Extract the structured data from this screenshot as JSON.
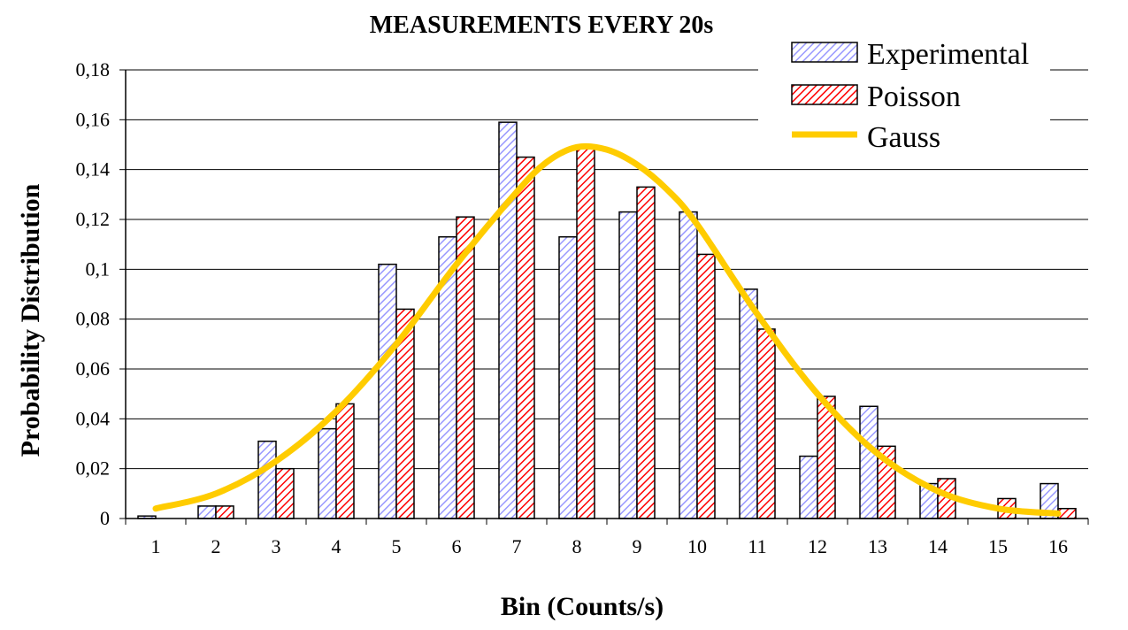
{
  "chart_data": {
    "type": "bar",
    "title": "MEASUREMENTS EVERY 20s",
    "xlabel": "Bin (Counts/s)",
    "ylabel": "Probability Distribution",
    "categories": [
      "1",
      "2",
      "3",
      "4",
      "5",
      "6",
      "7",
      "8",
      "9",
      "10",
      "11",
      "12",
      "13",
      "14",
      "15",
      "16"
    ],
    "ylim": [
      0,
      0.18
    ],
    "yticks": [
      "0",
      "0,02",
      "0,04",
      "0,06",
      "0,08",
      "0,1",
      "0,12",
      "0,14",
      "0,16",
      "0,18"
    ],
    "grid": true,
    "legend_position": "top-right",
    "series": [
      {
        "name": "Experimental",
        "kind": "bar",
        "color": "#9999ff",
        "values": [
          0.001,
          0.005,
          0.031,
          0.036,
          0.102,
          0.113,
          0.159,
          0.113,
          0.123,
          0.123,
          0.092,
          0.025,
          0.045,
          0.014,
          0.0,
          0.014
        ]
      },
      {
        "name": "Poisson",
        "kind": "bar",
        "color": "#ff0000",
        "values": [
          0.0,
          0.005,
          0.02,
          0.046,
          0.084,
          0.121,
          0.145,
          0.149,
          0.133,
          0.106,
          0.076,
          0.049,
          0.029,
          0.016,
          0.008,
          0.004
        ]
      },
      {
        "name": "Gauss",
        "kind": "line",
        "color": "#ffcc00",
        "x": [
          1,
          2,
          3,
          4,
          5,
          6,
          7,
          7.5,
          8,
          8.5,
          9,
          9.5,
          10,
          11,
          12,
          13,
          14,
          15,
          16
        ],
        "values": [
          0.004,
          0.01,
          0.023,
          0.043,
          0.07,
          0.102,
          0.131,
          0.143,
          0.149,
          0.148,
          0.142,
          0.132,
          0.118,
          0.082,
          0.05,
          0.026,
          0.011,
          0.004,
          0.002
        ]
      }
    ]
  }
}
